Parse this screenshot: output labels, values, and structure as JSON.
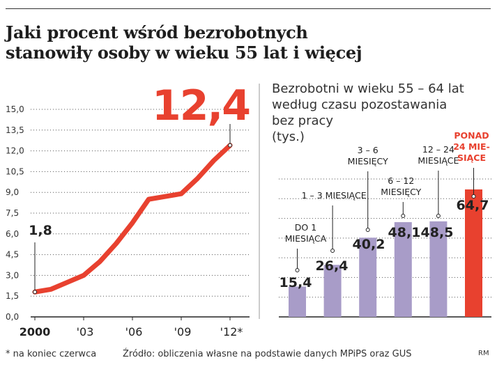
{
  "headline": {
    "line1": "Jaki procent wśród bezrobotnych",
    "line2": "stanowiły osoby w wieku 55 lat i więcej"
  },
  "subtitle": {
    "line1": "Bezrobotni w wieku 55 – 64 lat",
    "line2": "według czasu pozostawania",
    "line3": "bez pracy",
    "line4": "(tys.)"
  },
  "footer": {
    "note": "* na koniec czerwca",
    "source": "Źródło: obliczenia własne na podstawie danych MPiPS oraz GUS",
    "credit": "RM"
  },
  "colors": {
    "line": "#e8412f",
    "bar": "#a89cc8",
    "highlight_bar": "#e8412f",
    "highlight_text": "#e8412f",
    "grid": "#555555"
  },
  "chart_data": [
    {
      "type": "line",
      "title": "",
      "x": [
        2000,
        2001,
        2002,
        2003,
        2004,
        2005,
        2006,
        2007,
        2008,
        2009,
        2010,
        2011,
        2012
      ],
      "x_tick_labels": [
        "2000",
        "'03",
        "'06",
        "'09",
        "'12*"
      ],
      "x_tick_values": [
        2000,
        2003,
        2006,
        2009,
        2012
      ],
      "series": [
        {
          "values": [
            1.8,
            2.0,
            2.5,
            3.0,
            4.0,
            5.3,
            6.8,
            8.5,
            8.7,
            8.9,
            10.0,
            11.3,
            12.4
          ]
        }
      ],
      "annotations": [
        {
          "label": "1,8",
          "x": 2000,
          "y": 1.8
        },
        {
          "label": "12,4",
          "x": 2012,
          "y": 12.4
        }
      ],
      "ylim": [
        0,
        15
      ],
      "y_ticks": [
        "0,0",
        "1,5",
        "3,0",
        "4,5",
        "6,0",
        "7,5",
        "9,0",
        "10,5",
        "12,0",
        "13,5",
        "15,0"
      ],
      "grid": "horizontal-dotted",
      "xlabel": "",
      "ylabel": ""
    },
    {
      "type": "bar",
      "title": "",
      "categories": [
        [
          "DO 1",
          "MIESIĄCA"
        ],
        [
          "1 – 3 MIESIĄCE"
        ],
        [
          "3 – 6",
          "MIESIĘCY"
        ],
        [
          "6 – 12",
          "MIESIĘCY"
        ],
        [
          "12 – 24",
          "MIESIĄCE"
        ],
        [
          "PONAD",
          "24 MIE-",
          "SIĄCE"
        ]
      ],
      "values": [
        15.4,
        26.4,
        40.2,
        48.1,
        48.5,
        64.7
      ],
      "value_labels": [
        "15,4",
        "26,4",
        "40,2",
        "48,1",
        "48,5",
        "64,7"
      ],
      "highlight_index": 5,
      "ylim": [
        0,
        70
      ],
      "grid": "horizontal-dotted",
      "xlabel": "",
      "ylabel": ""
    }
  ]
}
